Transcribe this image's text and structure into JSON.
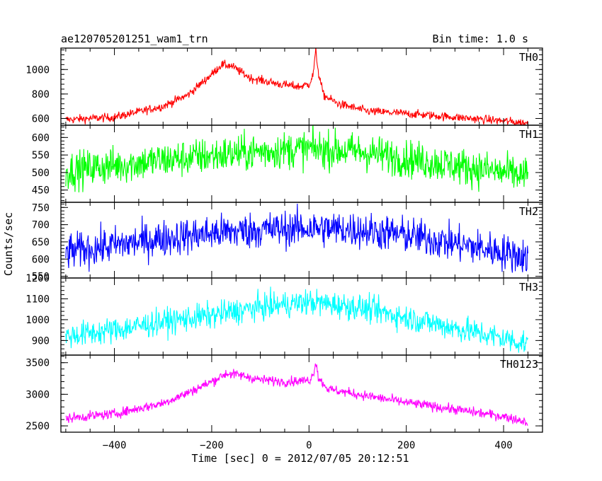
{
  "header": {
    "title": "ae120705201251_wam1_trn",
    "bin_time": "Bin time: 1.0 s"
  },
  "chart_data": {
    "type": "line",
    "xlabel": "Time [sec] 0 = 2012/07/05 20:12:51",
    "ylabel": "Counts/sec",
    "xlim": [
      -510,
      480
    ],
    "xticks": [
      -400,
      -200,
      0,
      200,
      400
    ],
    "xtick_labels": [
      "−400",
      "−200",
      "0",
      "200",
      "400"
    ],
    "x_start": -500,
    "x_end": 450,
    "x_step": 1.0,
    "panels": [
      {
        "name": "TH0",
        "color": "#ff0000",
        "ylim": [
          545,
          1175
        ],
        "yticks": [
          600,
          800,
          1000
        ],
        "noise": 25,
        "profile": [
          [
            -500,
            590
          ],
          [
            -400,
            610
          ],
          [
            -300,
            700
          ],
          [
            -250,
            790
          ],
          [
            -200,
            960
          ],
          [
            -180,
            1040
          ],
          [
            -160,
            1030
          ],
          [
            -120,
            930
          ],
          [
            -60,
            880
          ],
          [
            -20,
            860
          ],
          [
            0,
            880
          ],
          [
            8,
            950
          ],
          [
            14,
            1150
          ],
          [
            20,
            960
          ],
          [
            30,
            790
          ],
          [
            60,
            720
          ],
          [
            120,
            660
          ],
          [
            200,
            640
          ],
          [
            300,
            610
          ],
          [
            400,
            580
          ],
          [
            450,
            560
          ]
        ]
      },
      {
        "name": "TH1",
        "color": "#00ff00",
        "ylim": [
          415,
          635
        ],
        "yticks": [
          450,
          500,
          550,
          600
        ],
        "noise": 38,
        "profile": [
          [
            -500,
            505
          ],
          [
            -400,
            520
          ],
          [
            -300,
            535
          ],
          [
            -200,
            548
          ],
          [
            -100,
            560
          ],
          [
            0,
            568
          ],
          [
            100,
            560
          ],
          [
            200,
            540
          ],
          [
            300,
            520
          ],
          [
            400,
            500
          ],
          [
            450,
            490
          ]
        ]
      },
      {
        "name": "TH2",
        "color": "#0000ff",
        "ylim": [
          545,
          765
        ],
        "yticks": [
          550,
          600,
          650,
          700,
          750
        ],
        "noise": 38,
        "profile": [
          [
            -500,
            620
          ],
          [
            -400,
            640
          ],
          [
            -300,
            660
          ],
          [
            -200,
            675
          ],
          [
            -100,
            685
          ],
          [
            0,
            690
          ],
          [
            100,
            685
          ],
          [
            200,
            670
          ],
          [
            300,
            645
          ],
          [
            400,
            620
          ],
          [
            450,
            605
          ]
        ]
      },
      {
        "name": "TH3",
        "color": "#00ffff",
        "ylim": [
          830,
          1200
        ],
        "yticks": [
          900,
          1000,
          1100,
          1200
        ],
        "noise": 45,
        "profile": [
          [
            -500,
            920
          ],
          [
            -400,
            950
          ],
          [
            -300,
            990
          ],
          [
            -200,
            1020
          ],
          [
            -100,
            1060
          ],
          [
            0,
            1085
          ],
          [
            100,
            1060
          ],
          [
            200,
            1010
          ],
          [
            300,
            960
          ],
          [
            400,
            910
          ],
          [
            450,
            885
          ]
        ]
      },
      {
        "name": "TH0123",
        "color": "#ff00ff",
        "ylim": [
          2400,
          3620
        ],
        "yticks": [
          2500,
          3000,
          3500
        ],
        "noise": 55,
        "profile": [
          [
            -500,
            2620
          ],
          [
            -400,
            2690
          ],
          [
            -300,
            2860
          ],
          [
            -250,
            3020
          ],
          [
            -200,
            3200
          ],
          [
            -170,
            3330
          ],
          [
            -140,
            3300
          ],
          [
            -100,
            3230
          ],
          [
            -50,
            3200
          ],
          [
            0,
            3220
          ],
          [
            8,
            3300
          ],
          [
            14,
            3520
          ],
          [
            20,
            3250
          ],
          [
            40,
            3080
          ],
          [
            100,
            3000
          ],
          [
            200,
            2870
          ],
          [
            300,
            2760
          ],
          [
            400,
            2650
          ],
          [
            450,
            2560
          ]
        ]
      }
    ]
  }
}
